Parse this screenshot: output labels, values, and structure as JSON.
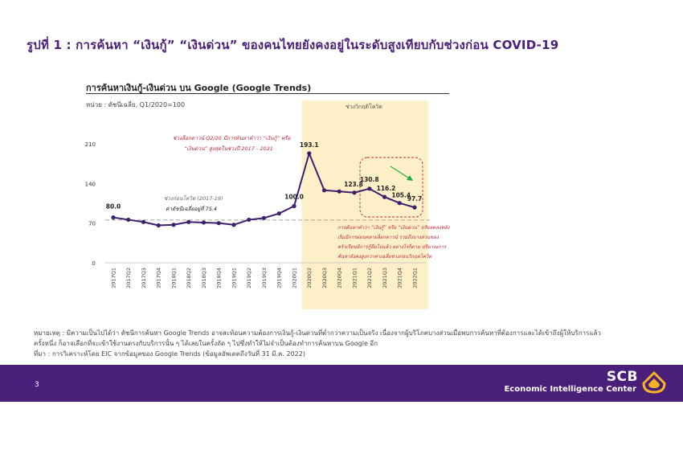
{
  "slide": {
    "title": "รูปที่ 1 : การค้นหา “เงินกู้” “เงินด่วน” ของคนไทยยังคงอยู่ในระดับสูงเทียบกับช่วงก่อน COVID-19",
    "page_number": "3"
  },
  "chart_data": {
    "type": "line",
    "title": "การค้นหาเงินกู้-เงินด่วน บน Google (Google Trends)",
    "unit": "หน่วย : ดัชนีเฉลี่ย, Q1/2020=100",
    "categories": [
      "2017Q1",
      "2017Q2",
      "2017Q3",
      "2017Q4",
      "2018Q1",
      "2018Q2",
      "2018Q3",
      "2018Q4",
      "2019Q1",
      "2019Q2",
      "2019Q3",
      "2019Q4",
      "2020Q1",
      "2020Q2",
      "2020Q3",
      "2020Q4",
      "2021Q1",
      "2021Q2",
      "2021Q3",
      "2021Q4",
      "2022Q1"
    ],
    "series": [
      {
        "values": [
          80.0,
          76,
          72,
          66,
          67,
          72,
          71,
          70,
          67,
          76,
          79,
          87,
          100.0,
          193.1,
          128,
          126,
          123.8,
          130.8,
          116.2,
          105.4,
          97.7
        ]
      }
    ],
    "data_labels": {
      "0": "80.0",
      "12": "100.0",
      "13": "193.1",
      "16": "123.8",
      "17": "130.8",
      "18": "116.2",
      "19": "105.4",
      "20": "97.7"
    },
    "yticks": [
      "0",
      "70",
      "140",
      "210"
    ],
    "ylim": [
      0,
      230
    ],
    "reference_line": {
      "value": 75.4
    },
    "covid_period_label": "ช่วงวิกฤติโควิด",
    "covid_period_start": "2020Q1",
    "covid_period_end": "2022Q1",
    "annotations": {
      "peak_line1": "ช่วงล็อกดาวน์ Q2/20 มีการค้นหาคำว่า “เงินกู้” หรือ",
      "peak_line2": "“เงินด่วน” สูงสุดในช่วงปี 2017 - 2021",
      "precovid_line1": "ช่วงก่อนโควิด (2017-19)",
      "precovid_line2": "ค่าดัชนีเฉลี่ยอยู่ที่ 75.4",
      "trend_line1": "การค้นหาคำว่า “เงินกู้” หรือ “เงินด่วน” ปรับลดลงหลัง",
      "trend_line2": "เริ่มมีการผ่อนคลายล็อกดาวน์ รวมถึงบางส่วนของ",
      "trend_line3": "ครัวเรือนมีการกู้ยืมไปแล้ว อย่างไรก็ตาม ปริมาณการ",
      "trend_line4": "ค้นหายังคงสูงกว่าค่าเฉลี่ยช่วงก่อนวิกฤตโควิด"
    },
    "colors": {
      "line": "#3d1f6e",
      "covid_band": "#fdf0c8",
      "annotation": "#c0283b",
      "reference": "#888888",
      "arrow": "#22a745"
    }
  },
  "notes": {
    "line1": "หมายเหตุ : มีความเป็นไปได้ว่า ดัชนีการค้นหา Google Trends อาจสะท้อนความต้องการเงินกู้-เงินด่วนที่ต่ำกว่าความเป็นจริง เนื่องจากผู้บริโภคบางส่วนเมื่อพบการค้นหาที่ต้องการและได้เข้าถึงผู้ให้บริการแล้ว",
    "line2": "ครั้งหนึ่ง ก็อาจเลือกที่จะเข้าใช้งานตรงกับบริการนั้น ๆ ได้เลยในครั้งถัด ๆ ไปซึ่งทำให้ไม่จำเป็นต้องทำการค้นหาบน Google อีก",
    "line3": "ที่มา : การวิเคราะห์โดย EIC จากข้อมูลของ Google Trends (ข้อมูลอัพเดตถึงวันที่ 31 มี.ค. 2022)"
  },
  "brand": {
    "name": "SCB",
    "subtitle": "Economic Intelligence Center"
  }
}
